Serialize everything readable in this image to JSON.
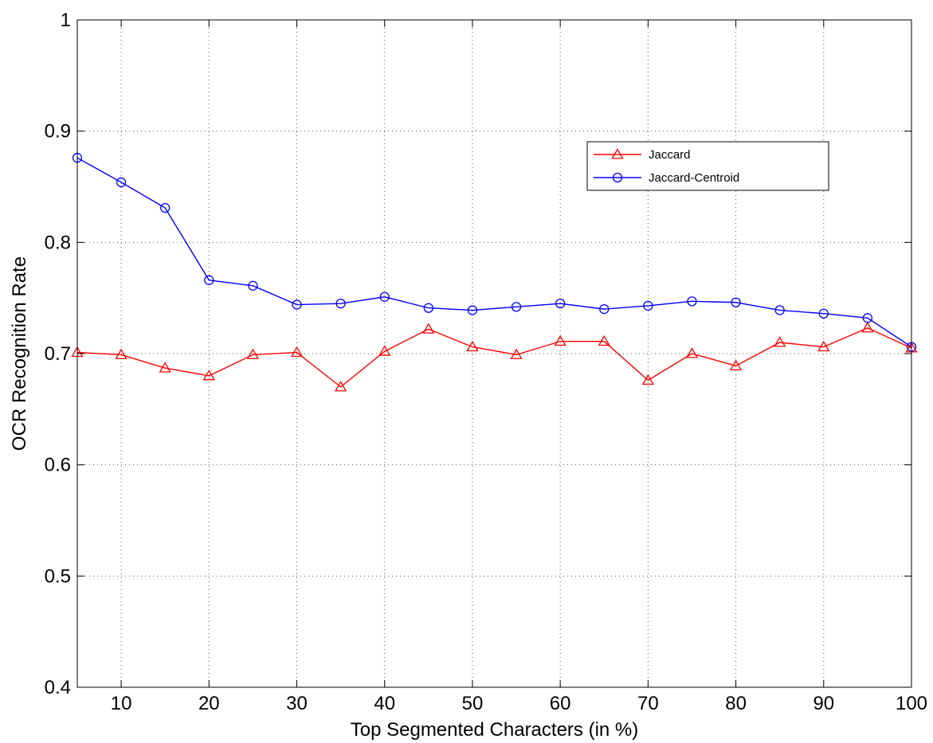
{
  "chart_data": {
    "type": "line",
    "title": "",
    "xlabel": "Top Segmented Characters (in %)",
    "ylabel": "OCR Recognition Rate",
    "xlim": [
      5,
      100
    ],
    "ylim": [
      0.4,
      1
    ],
    "x_ticks": [
      10,
      20,
      30,
      40,
      50,
      60,
      70,
      80,
      90,
      100
    ],
    "y_ticks": [
      0.4,
      0.5,
      0.6,
      0.7,
      0.8,
      0.9,
      1
    ],
    "y_tick_labels": [
      "0.4",
      "0.5",
      "0.6",
      "0.7",
      "0.8",
      "0.9",
      "1"
    ],
    "grid": true,
    "legend_position": "top-right",
    "x": [
      5,
      10,
      15,
      20,
      25,
      30,
      35,
      40,
      45,
      50,
      55,
      60,
      65,
      70,
      75,
      80,
      85,
      90,
      95,
      100
    ],
    "series": [
      {
        "name": "Jaccard",
        "color": "#ff0000",
        "marker": "triangle",
        "values": [
          0.701,
          0.699,
          0.687,
          0.68,
          0.699,
          0.701,
          0.67,
          0.702,
          0.722,
          0.706,
          0.699,
          0.711,
          0.711,
          0.676,
          0.7,
          0.689,
          0.71,
          0.706,
          0.723,
          0.705
        ]
      },
      {
        "name": "Jaccard-Centroid",
        "color": "#0000ff",
        "marker": "circle",
        "values": [
          0.876,
          0.854,
          0.831,
          0.766,
          0.761,
          0.744,
          0.745,
          0.751,
          0.741,
          0.739,
          0.742,
          0.745,
          0.74,
          0.743,
          0.747,
          0.746,
          0.739,
          0.736,
          0.732,
          0.706
        ]
      }
    ]
  }
}
